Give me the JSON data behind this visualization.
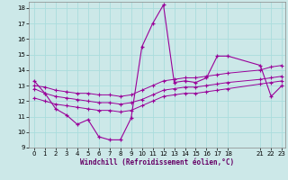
{
  "xlabel": "Windchill (Refroidissement éolien,°C)",
  "bg_color": "#cce8e8",
  "grid_color": "#aadddd",
  "line_color": "#990099",
  "xlim": [
    -0.5,
    23.3
  ],
  "ylim": [
    9,
    18.4
  ],
  "xticks": [
    0,
    1,
    2,
    3,
    4,
    5,
    6,
    7,
    8,
    9,
    10,
    11,
    12,
    13,
    14,
    15,
    16,
    17,
    18,
    21,
    22,
    23
  ],
  "yticks": [
    9,
    10,
    11,
    12,
    13,
    14,
    15,
    16,
    17,
    18
  ],
  "series": [
    {
      "x": [
        0,
        1,
        2,
        3,
        4,
        5,
        6,
        7,
        8,
        9,
        10,
        11,
        12,
        13,
        14,
        15,
        16,
        17,
        18,
        21,
        22,
        23
      ],
      "y": [
        13.3,
        12.5,
        11.5,
        11.1,
        10.5,
        10.8,
        9.7,
        9.5,
        9.5,
        10.9,
        15.5,
        17.0,
        18.2,
        13.2,
        13.3,
        13.2,
        13.5,
        14.9,
        14.9,
        14.3,
        12.3,
        13.0
      ]
    },
    {
      "x": [
        0,
        1,
        2,
        3,
        4,
        5,
        6,
        7,
        8,
        9,
        10,
        11,
        12,
        13,
        14,
        15,
        16,
        17,
        18,
        21,
        22,
        23
      ],
      "y": [
        13.0,
        12.9,
        12.7,
        12.6,
        12.5,
        12.5,
        12.4,
        12.4,
        12.3,
        12.4,
        12.7,
        13.0,
        13.3,
        13.4,
        13.5,
        13.5,
        13.6,
        13.7,
        13.8,
        14.0,
        14.2,
        14.3
      ]
    },
    {
      "x": [
        0,
        1,
        2,
        3,
        4,
        5,
        6,
        7,
        8,
        9,
        10,
        11,
        12,
        13,
        14,
        15,
        16,
        17,
        18,
        21,
        22,
        23
      ],
      "y": [
        12.8,
        12.5,
        12.3,
        12.2,
        12.1,
        12.0,
        11.9,
        11.9,
        11.8,
        11.9,
        12.1,
        12.4,
        12.7,
        12.8,
        12.9,
        12.9,
        13.0,
        13.1,
        13.2,
        13.4,
        13.5,
        13.6
      ]
    },
    {
      "x": [
        0,
        1,
        2,
        3,
        4,
        5,
        6,
        7,
        8,
        9,
        10,
        11,
        12,
        13,
        14,
        15,
        16,
        17,
        18,
        21,
        22,
        23
      ],
      "y": [
        12.2,
        12.0,
        11.8,
        11.7,
        11.6,
        11.5,
        11.4,
        11.4,
        11.3,
        11.4,
        11.7,
        12.0,
        12.3,
        12.4,
        12.5,
        12.5,
        12.6,
        12.7,
        12.8,
        13.1,
        13.2,
        13.3
      ]
    }
  ]
}
